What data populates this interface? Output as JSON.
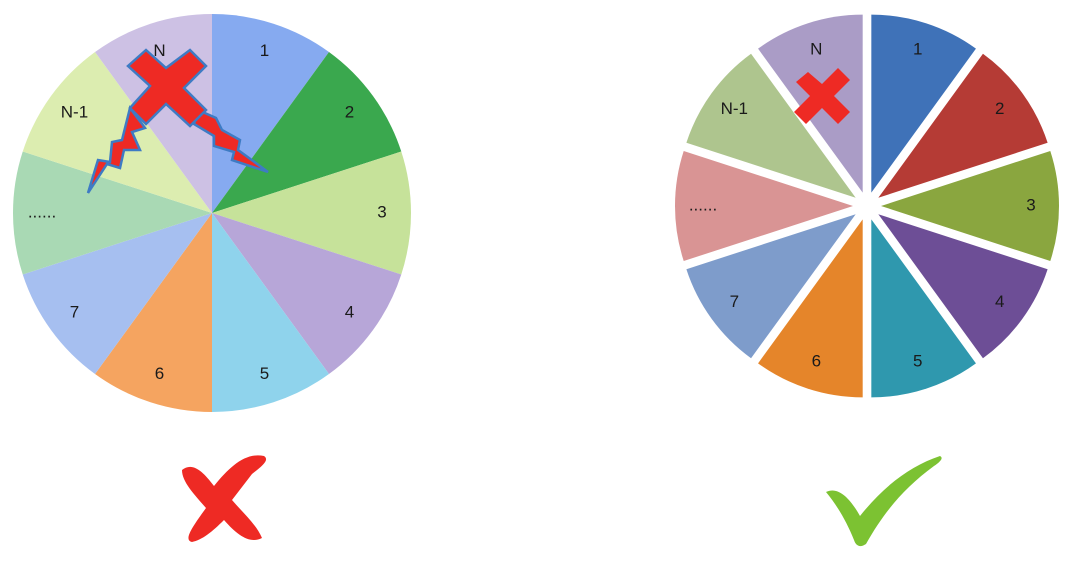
{
  "labels": [
    "1",
    "2",
    "3",
    "4",
    "5",
    "6",
    "7",
    "......",
    "N-1",
    "N"
  ],
  "left_pie": {
    "colors": [
      "#86aaf0",
      "#3aa84e",
      "#c6e29a",
      "#b7a6d8",
      "#8fd3ec",
      "#f5a460",
      "#a6bff0",
      "#a9d9b4",
      "#dcedb0",
      "#cdc1e4"
    ],
    "status": "incorrect"
  },
  "right_pie": {
    "colors": [
      "#3f72b8",
      "#b53b35",
      "#8aa63f",
      "#6d4e96",
      "#2f98ae",
      "#e5852a",
      "#7e9ccb",
      "#d99494",
      "#aec58e",
      "#aa9cc6"
    ],
    "status": "correct"
  },
  "marks": {
    "wrong_color": "#ee2a24",
    "right_color": "#7cc232"
  }
}
